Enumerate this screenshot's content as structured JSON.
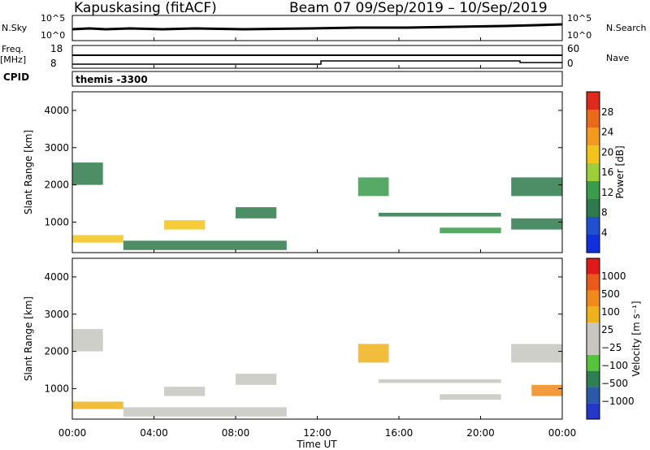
{
  "header": {
    "station": "Kapuskasing (fitACF)",
    "beam_date": "Beam 07  09/Sep/2019 – 10/Sep/2019"
  },
  "param_panel": {
    "nsky_label": "N.Sky",
    "nsky_ticks": [
      "10^5",
      "10^0"
    ],
    "nsearch_label": "N.Search",
    "nsearch_ticks": [
      "10^5",
      "10^0"
    ],
    "freq_label": "Freq.",
    "freq_unit": "[MHz]",
    "freq_ticks": [
      "18",
      "8"
    ],
    "nave_label": "Nave",
    "nave_ticks": [
      "60",
      "0"
    ],
    "cpid_label": "CPID",
    "cpid_value": "themis -3300"
  },
  "x_axis": {
    "label": "Time UT",
    "ticks": [
      "00:00",
      "04:00",
      "08:00",
      "12:00",
      "16:00",
      "20:00",
      "00:00"
    ]
  },
  "colors": {
    "power_scale": [
      "#1030e0",
      "#2050d0",
      "#2f7a4c",
      "#3a9b4b",
      "#9ccf3a",
      "#f2c31a",
      "#f19a1c",
      "#ea6a1c",
      "#dd2a1c"
    ],
    "velocity_scale": [
      "#2437c8",
      "#2b5ba8",
      "#2f7f55",
      "#56c43b",
      "#c7c7c0",
      "#c7c7c0",
      "#f0b21a",
      "#f08a1a",
      "#ea5a1a",
      "#e01a1a"
    ]
  },
  "chart_data": [
    {
      "type": "heatmap",
      "title": "",
      "xlabel": "Time UT",
      "ylabel": "Slant Range [km]",
      "xlim": [
        0,
        24
      ],
      "ylim": [
        180,
        4500
      ],
      "yticks": [
        "1000",
        "2000",
        "3000",
        "4000"
      ],
      "colorbar": {
        "label": "Power [dB]",
        "range": [
          0,
          32
        ],
        "ticks": [
          "4",
          "8",
          "12",
          "16",
          "20",
          "24",
          "28"
        ]
      },
      "features": [
        {
          "t0": 0.0,
          "t1": 2.5,
          "r0": 450,
          "r1": 650,
          "level": 0.6
        },
        {
          "t0": 0.0,
          "t1": 1.5,
          "r0": 2000,
          "r1": 2600,
          "level": 0.2
        },
        {
          "t0": 2.5,
          "t1": 10.5,
          "r0": 250,
          "r1": 500,
          "level": 0.3
        },
        {
          "t0": 4.5,
          "t1": 6.5,
          "r0": 800,
          "r1": 1050,
          "level": 0.6
        },
        {
          "t0": 8.0,
          "t1": 10.0,
          "r0": 1100,
          "r1": 1400,
          "level": 0.2
        },
        {
          "t0": 14.0,
          "t1": 15.5,
          "r0": 1700,
          "r1": 2200,
          "level": 0.4
        },
        {
          "t0": 15.0,
          "t1": 21.0,
          "r0": 1150,
          "r1": 1250,
          "level": 0.2
        },
        {
          "t0": 18.0,
          "t1": 21.0,
          "r0": 700,
          "r1": 850,
          "level": 0.4
        },
        {
          "t0": 21.5,
          "t1": 24.0,
          "r0": 1700,
          "r1": 2200,
          "level": 0.3
        },
        {
          "t0": 21.5,
          "t1": 24.0,
          "r0": 800,
          "r1": 1100,
          "level": 0.3
        }
      ]
    },
    {
      "type": "heatmap",
      "title": "",
      "xlabel": "Time UT",
      "ylabel": "Slant Range [km]",
      "xlim": [
        0,
        24
      ],
      "ylim": [
        180,
        4500
      ],
      "yticks": [
        "1000",
        "2000",
        "3000",
        "4000"
      ],
      "colorbar": {
        "label": "Velocity [m s⁻¹]",
        "ticks": [
          "1000",
          "500",
          "100",
          "25",
          "−25",
          "−100",
          "−500",
          "−1000"
        ]
      },
      "features": [
        {
          "t0": 0.0,
          "t1": 2.5,
          "r0": 450,
          "r1": 650,
          "level": 0.7
        },
        {
          "t0": 0.0,
          "t1": 1.5,
          "r0": 2000,
          "r1": 2600,
          "level": 0.5
        },
        {
          "t0": 2.5,
          "t1": 10.5,
          "r0": 250,
          "r1": 500,
          "level": 0.4
        },
        {
          "t0": 4.5,
          "t1": 6.5,
          "r0": 800,
          "r1": 1050,
          "level": 0.5
        },
        {
          "t0": 8.0,
          "t1": 10.0,
          "r0": 1100,
          "r1": 1400,
          "level": 0.5
        },
        {
          "t0": 14.0,
          "t1": 15.5,
          "r0": 1700,
          "r1": 2200,
          "level": 0.7
        },
        {
          "t0": 15.0,
          "t1": 21.0,
          "r0": 1150,
          "r1": 1250,
          "level": 0.5
        },
        {
          "t0": 18.0,
          "t1": 21.0,
          "r0": 700,
          "r1": 850,
          "level": 0.5
        },
        {
          "t0": 21.5,
          "t1": 24.0,
          "r0": 1700,
          "r1": 2200,
          "level": 0.5
        },
        {
          "t0": 22.5,
          "t1": 24.0,
          "r0": 800,
          "r1": 1100,
          "level": 0.8
        }
      ]
    }
  ]
}
